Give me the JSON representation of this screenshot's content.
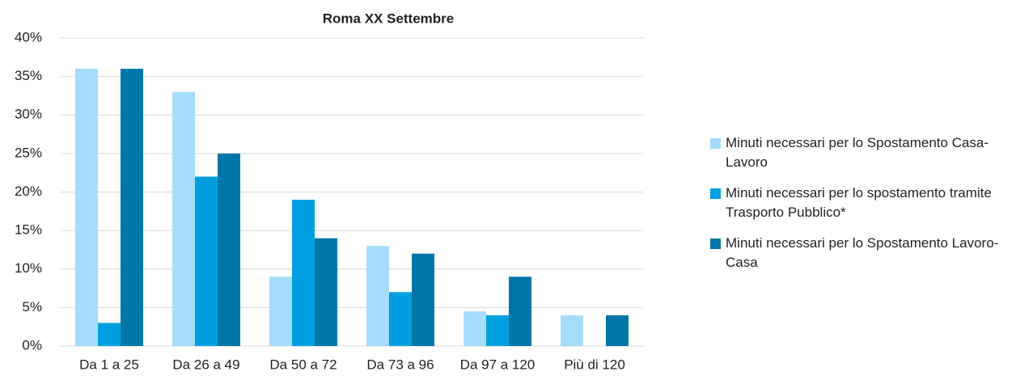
{
  "chart_data": {
    "type": "bar",
    "title": "Roma XX Settembre",
    "categories": [
      "Da 1 a 25",
      "Da 26 a 49",
      "Da 50 a 72",
      "Da 73 a 96",
      "Da 97 a 120",
      "Più di 120"
    ],
    "series": [
      {
        "name": "Minuti necessari per lo Spostamento Casa-Lavoro",
        "color": "#a6dcfb",
        "values": [
          36,
          33,
          9,
          13,
          4.5,
          4
        ]
      },
      {
        "name": "Minuti necessari per lo spostamento tramite Trasporto Pubblico*",
        "color": "#00a0e0",
        "values": [
          3,
          22,
          19,
          7,
          4,
          0
        ]
      },
      {
        "name": "Minuti necessari per lo Spostamento Lavoro-Casa",
        "color": "#0077a8",
        "values": [
          36,
          25,
          14,
          12,
          9,
          4
        ]
      }
    ],
    "ylim": [
      0,
      40
    ],
    "yticks": [
      {
        "value": 0,
        "label": "0%"
      },
      {
        "value": 5,
        "label": "5%"
      },
      {
        "value": 10,
        "label": "10%"
      },
      {
        "value": 15,
        "label": "15%"
      },
      {
        "value": 20,
        "label": "20%"
      },
      {
        "value": 25,
        "label": "25%"
      },
      {
        "value": 30,
        "label": "30%"
      },
      {
        "value": 35,
        "label": "35%"
      },
      {
        "value": 40,
        "label": "40%"
      }
    ],
    "grid": true,
    "legend": "right"
  }
}
